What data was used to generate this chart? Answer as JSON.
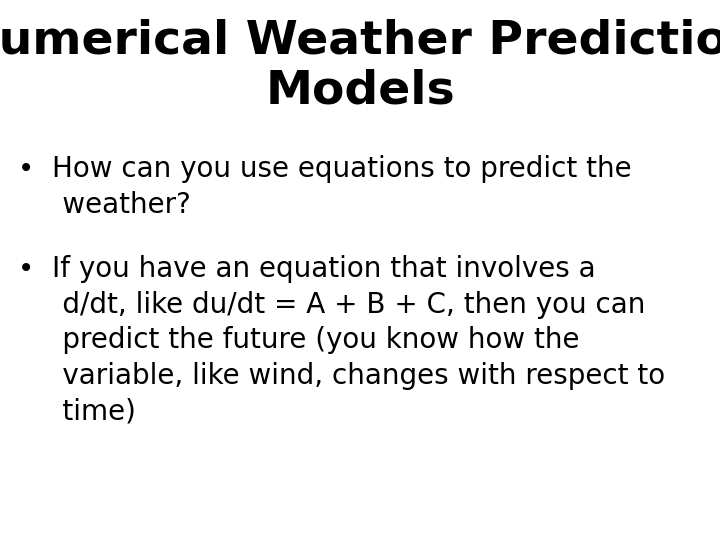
{
  "title_line1": "Numerical Weather Prediction",
  "title_line2": "Models",
  "background_color": "#ffffff",
  "text_color": "#000000",
  "title_fontsize": 34,
  "body_fontsize": 20,
  "bullet1_line1": "How can you use equations to predict the",
  "bullet1_line2": "weather?",
  "bullet2_line1": "If you have an equation that involves a",
  "bullet2_line2": "d/dt, like du/dt = A + B + C, then you can",
  "bullet2_line3": "predict the future (you know how the",
  "bullet2_line4": "variable, like wind, changes with respect to",
  "bullet2_line5": "time)",
  "font_family": "DejaVu Sans"
}
